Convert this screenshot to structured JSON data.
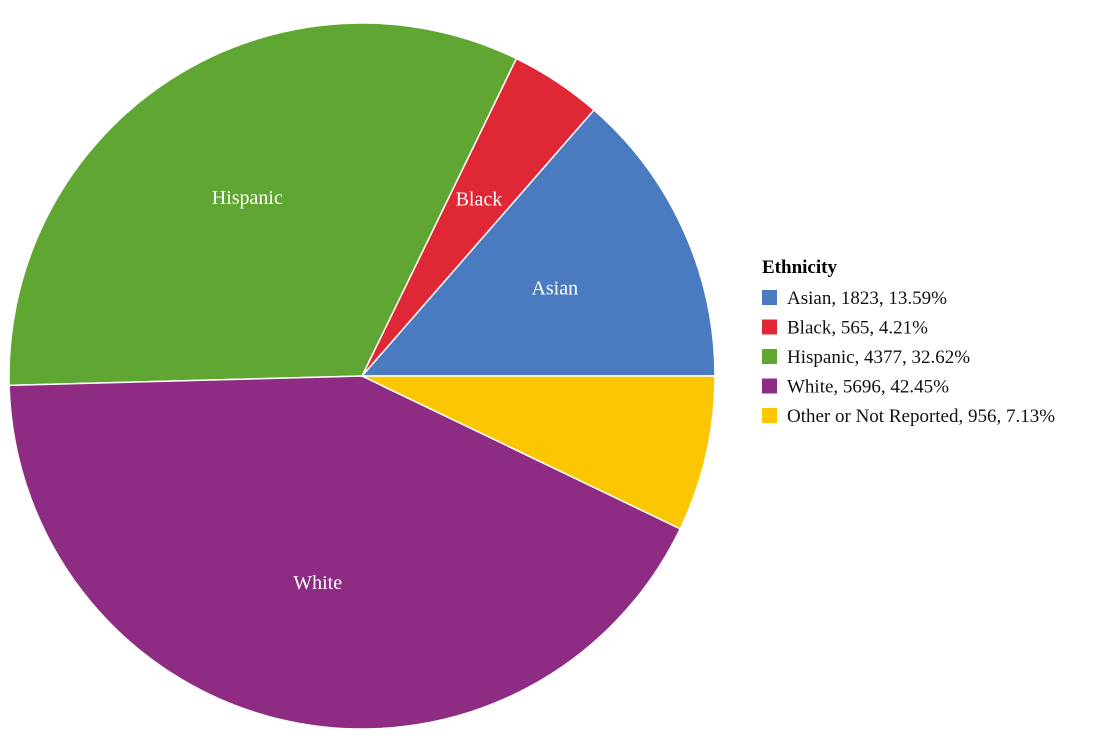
{
  "chart_data": {
    "type": "pie",
    "title": "",
    "legend_title": "Ethnicity",
    "legend_position": "right",
    "start_direction": "east",
    "direction": "counterclockwise",
    "slices": [
      {
        "label": "Asian",
        "value": 1823,
        "percent": 13.59,
        "color": "#4a7bc1",
        "legend_text": "Asian, 1823, 13.59%"
      },
      {
        "label": "Black",
        "value": 565,
        "percent": 4.21,
        "color": "#e02736",
        "legend_text": "Black, 565, 4.21%"
      },
      {
        "label": "Hispanic",
        "value": 4377,
        "percent": 32.62,
        "color": "#5fa633",
        "legend_text": "Hispanic, 4377, 32.62%"
      },
      {
        "label": "White",
        "value": 5696,
        "percent": 42.45,
        "color": "#8e2b82",
        "legend_text": "White, 5696, 42.45%"
      },
      {
        "label": "Other or Not Reported",
        "value": 956,
        "percent": 7.13,
        "color": "#fcc600",
        "legend_text": "Other or Not Reported, 956, 7.13%",
        "show_slice_label": false
      }
    ]
  }
}
